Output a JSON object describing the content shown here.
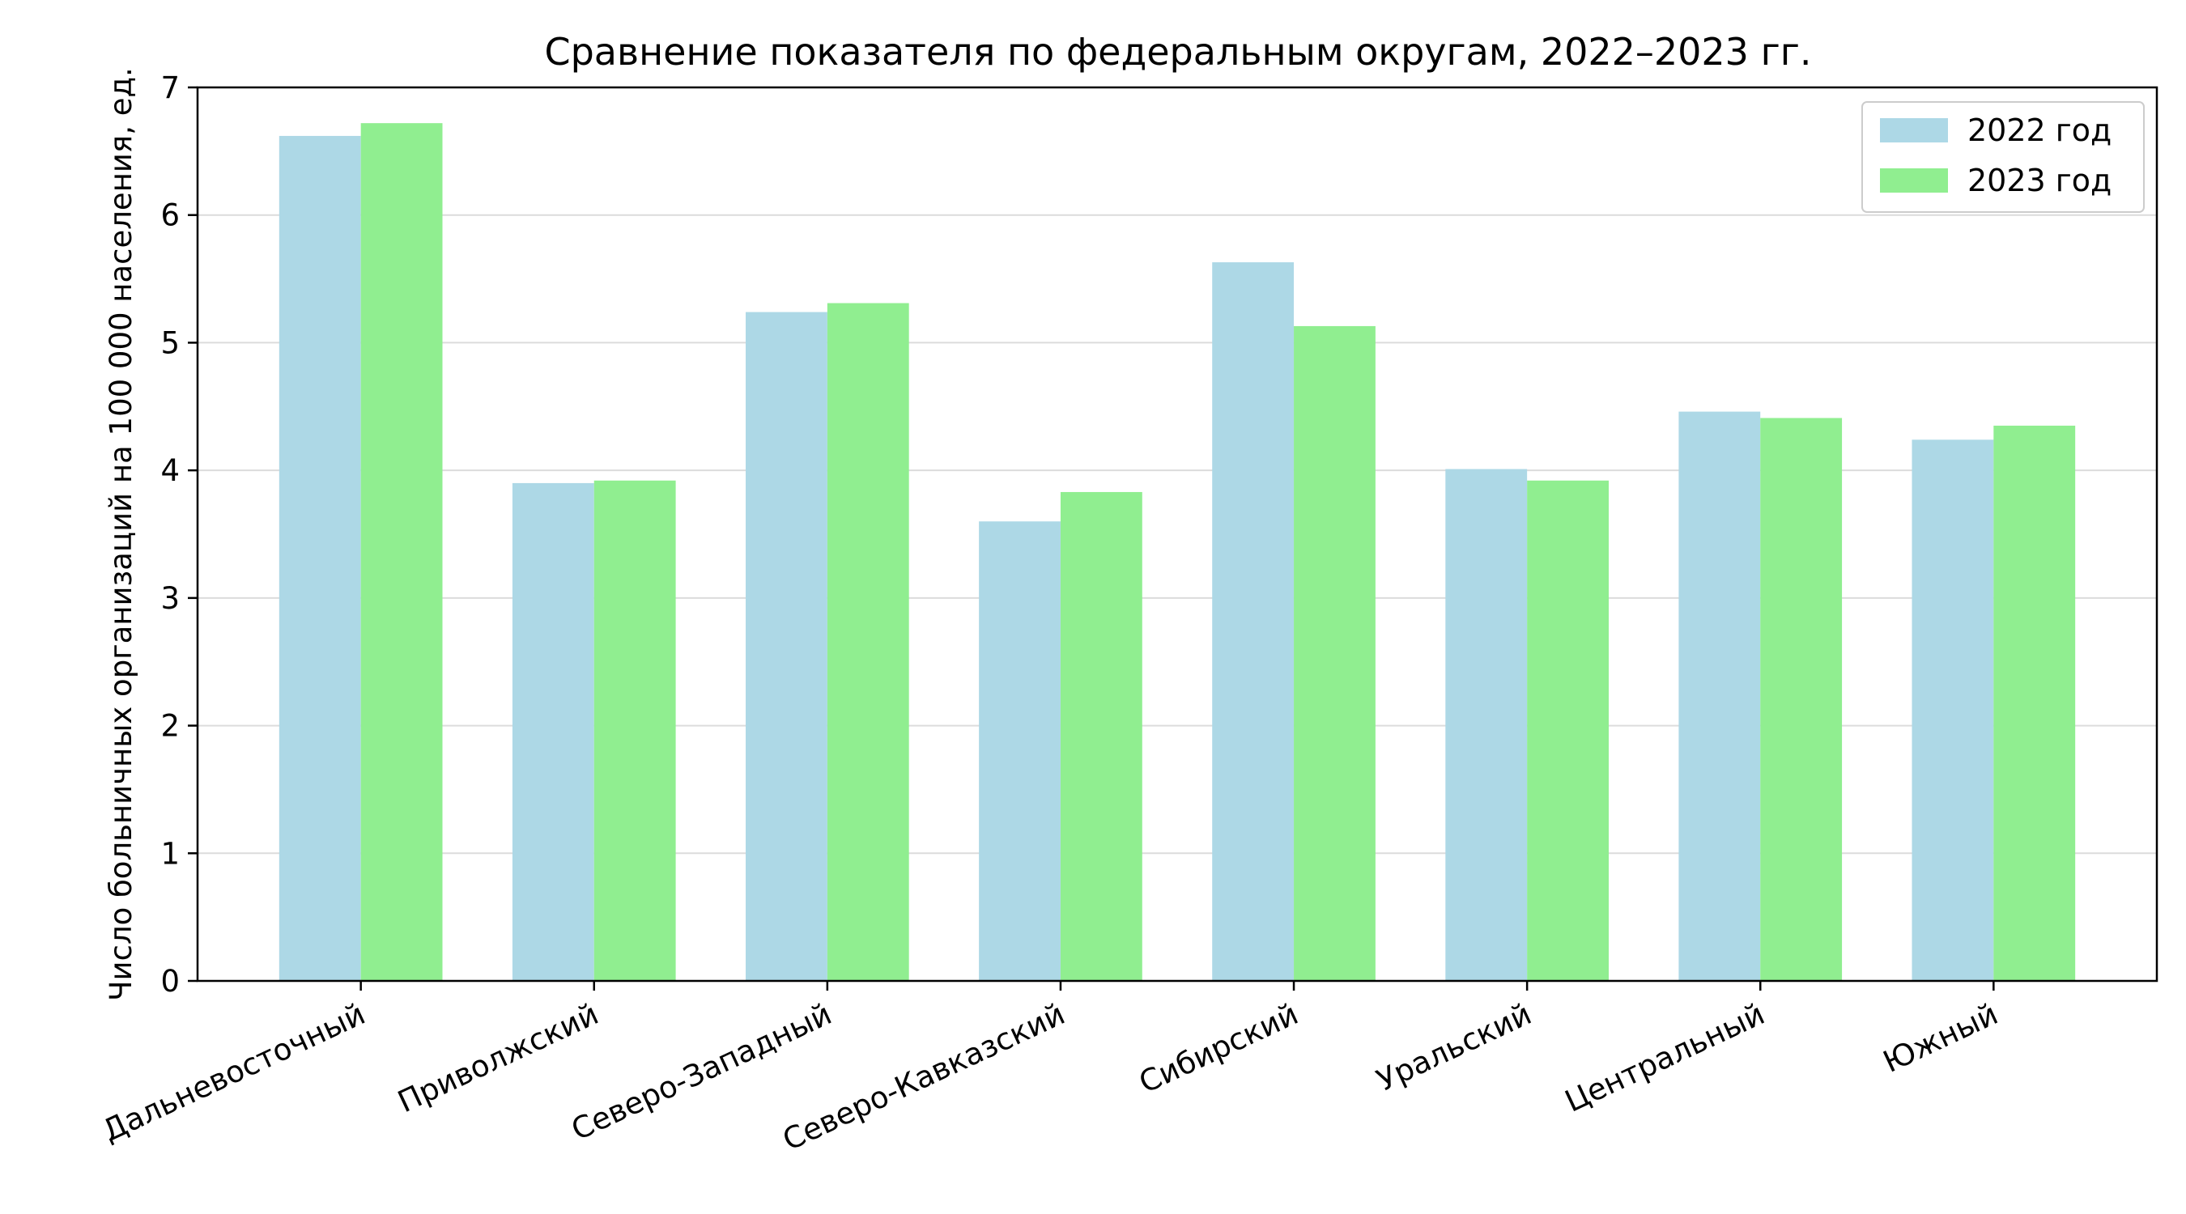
{
  "chart_data": {
    "type": "bar",
    "title": "Сравнение показателя по федеральным округам, 2022–2023 гг.",
    "xlabel": "",
    "ylabel": "Число больничных организаций на 100 000 населения, ед.",
    "ylim": [
      0,
      7
    ],
    "yticks": [
      0,
      1,
      2,
      3,
      4,
      5,
      6,
      7
    ],
    "grid": "horizontal",
    "legend_position": "top-right",
    "categories": [
      "Дальневосточный",
      "Приволжский",
      "Северо-Западный",
      "Северо-Кавказский",
      "Сибирский",
      "Уральский",
      "Центральный",
      "Южный"
    ],
    "series": [
      {
        "name": "2022 год",
        "color": "#add8e6",
        "values": [
          6.62,
          3.9,
          5.24,
          3.6,
          5.63,
          4.01,
          4.46,
          4.24
        ]
      },
      {
        "name": "2023 год",
        "color": "#90ee90",
        "values": [
          6.72,
          3.92,
          5.31,
          3.83,
          5.13,
          3.92,
          4.41,
          4.35
        ]
      }
    ]
  }
}
